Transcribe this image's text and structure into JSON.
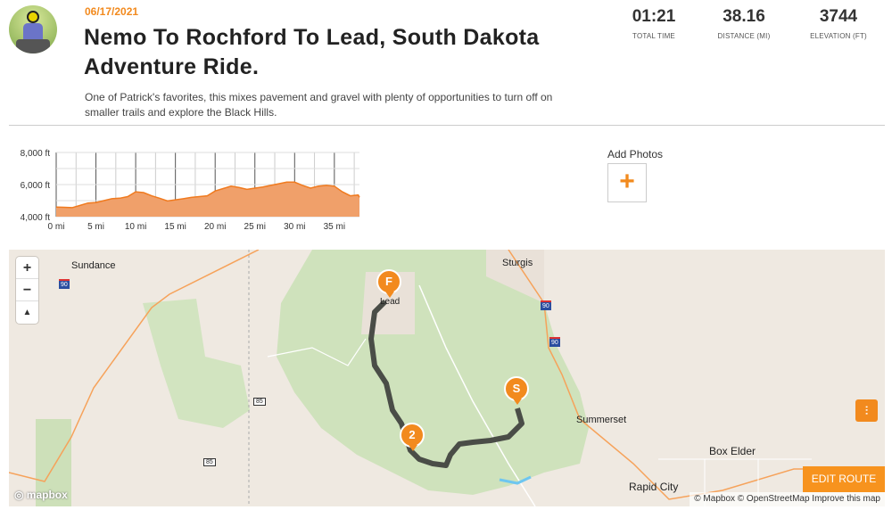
{
  "ride": {
    "date": "06/17/2021",
    "title": "Nemo To Rochford To Lead, South Dakota Adventure Ride.",
    "description": "One of Patrick's favorites, this mixes pavement and gravel with plenty of opportunities to turn off on smaller trails and explore the Black Hills."
  },
  "stats": [
    {
      "value": "01:21",
      "label": "TOTAL TIME"
    },
    {
      "value": "38.16",
      "label": "DISTANCE (MI)"
    },
    {
      "value": "3744",
      "label": "ELEVATION (FT)"
    }
  ],
  "photos": {
    "label": "Add Photos",
    "button": "+"
  },
  "chart_data": {
    "type": "area",
    "xlabel": "",
    "ylabel": "",
    "xlim": [
      0,
      38.16
    ],
    "ylim": [
      4000,
      8000
    ],
    "x_ticks": [
      "0 mi",
      "5 mi",
      "10 mi",
      "15 mi",
      "20 mi",
      "25 mi",
      "30 mi",
      "35 mi"
    ],
    "y_ticks": [
      "8,000 ft",
      "6,000 ft",
      "4,000 ft"
    ],
    "grid": true,
    "color": "#f07a1e",
    "fill": "#f0a06a",
    "x": [
      0,
      1,
      2,
      3,
      4,
      5,
      6,
      7,
      8,
      9,
      10,
      11,
      12,
      13,
      14,
      15,
      16,
      17,
      18,
      19,
      20,
      21,
      22,
      23,
      24,
      25,
      26,
      27,
      28,
      29,
      30,
      31,
      32,
      33,
      34,
      35,
      36,
      37,
      38,
      38.16
    ],
    "values": [
      4600,
      4580,
      4560,
      4700,
      4850,
      4880,
      5000,
      5120,
      5150,
      5250,
      5550,
      5500,
      5300,
      5150,
      4980,
      5050,
      5120,
      5200,
      5250,
      5300,
      5600,
      5750,
      5900,
      5820,
      5700,
      5780,
      5850,
      5950,
      6050,
      6150,
      6150,
      5950,
      5780,
      5900,
      5950,
      5900,
      5550,
      5300,
      5350,
      5200
    ]
  },
  "map": {
    "places": [
      "Sundance",
      "Sturgis",
      "Lead",
      "Summerset",
      "Box Elder",
      "Rapid City"
    ],
    "highways": [
      "90",
      "90",
      "90",
      "85",
      "85"
    ],
    "markers": [
      "F",
      "2",
      "S"
    ],
    "controls": {
      "zoom_in": "+",
      "zoom_out": "−",
      "compass": "▲"
    },
    "edit_route": "EDIT ROUTE",
    "attribution": "© Mapbox © OpenStreetMap Improve this map",
    "logo": "◎ mapbox",
    "filter_icon": "sliders-icon",
    "accent": "#f28a1e",
    "route_color": "#4a4d47"
  }
}
